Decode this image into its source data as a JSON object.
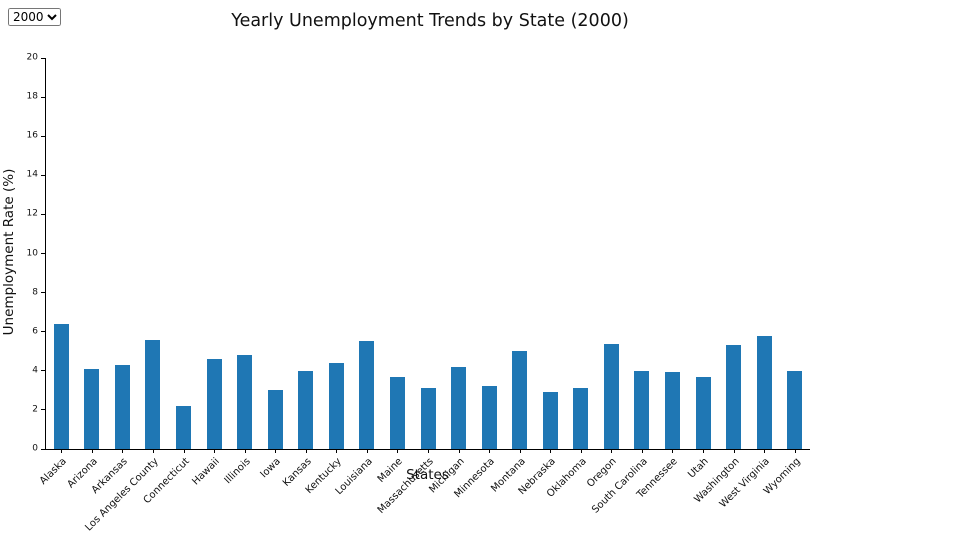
{
  "controls": {
    "year_select": {
      "value": "2000",
      "options": [
        "2000"
      ]
    }
  },
  "chart_data": {
    "type": "bar",
    "title": "Yearly Unemployment Trends by State (2000)",
    "xlabel": "States",
    "ylabel": "Unemployment Rate (%)",
    "ylim": [
      0,
      20
    ],
    "ytick_step": 2,
    "bar_color": "#1f77b4",
    "grid": false,
    "legend": "none",
    "categories": [
      "Alaska",
      "Arizona",
      "Arkansas",
      "Los Angeles County",
      "Connecticut",
      "Hawaii",
      "Illinois",
      "Iowa",
      "Kansas",
      "Kentucky",
      "Louisiana",
      "Maine",
      "Massachusetts",
      "Michigan",
      "Minnesota",
      "Montana",
      "Nebraska",
      "Oklahoma",
      "Oregon",
      "South Carolina",
      "Tennessee",
      "Utah",
      "Washington",
      "West Virginia",
      "Wyoming"
    ],
    "values": [
      6.4,
      4.1,
      4.3,
      5.6,
      2.2,
      4.6,
      4.8,
      3.0,
      4.0,
      4.4,
      5.5,
      3.7,
      3.1,
      4.2,
      3.2,
      5.0,
      2.9,
      3.1,
      5.35,
      4.0,
      3.95,
      3.7,
      5.3,
      5.8,
      4.0
    ]
  }
}
